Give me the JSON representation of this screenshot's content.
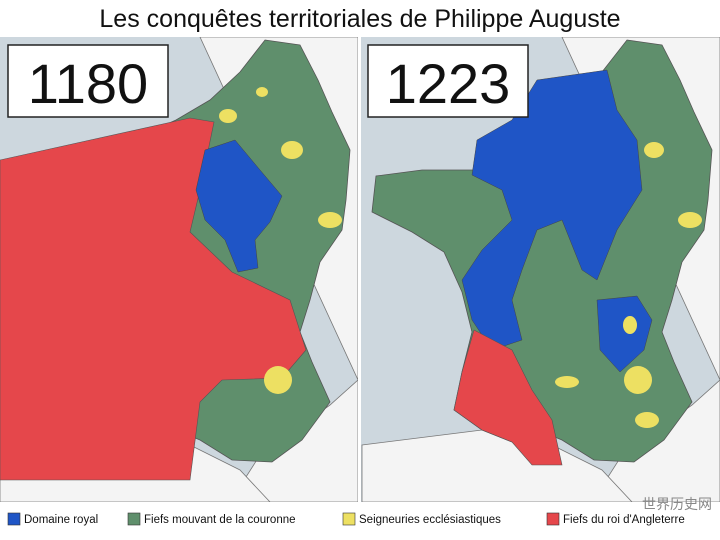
{
  "title": "Les conquêtes territoriales de Philippe Auguste",
  "maps": [
    {
      "year": "1180"
    },
    {
      "year": "1223"
    }
  ],
  "legend": [
    {
      "label": "Domaine royal",
      "color": "#1f55c6"
    },
    {
      "label": "Fiefs mouvant de la couronne",
      "color": "#5f8f6c"
    },
    {
      "label": "Seigneuries ecclésiastiques",
      "color": "#ede062"
    },
    {
      "label": "Fiefs du roi d'Angleterre",
      "color": "#e5474b"
    }
  ],
  "watermark": "世界历史网"
}
